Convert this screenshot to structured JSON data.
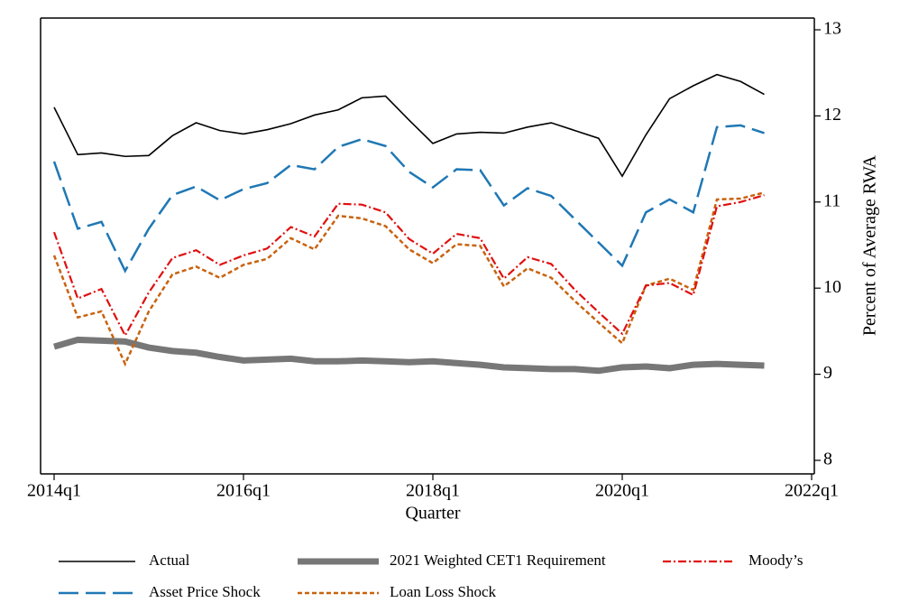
{
  "chart_data": {
    "type": "line",
    "xlabel": "Quarter",
    "ylabel": "Percent of Average RWA",
    "y_axis_side": "right",
    "x": [
      "2014q1",
      "2014q2",
      "2014q3",
      "2014q4",
      "2015q1",
      "2015q2",
      "2015q3",
      "2015q4",
      "2016q1",
      "2016q2",
      "2016q3",
      "2016q4",
      "2017q1",
      "2017q2",
      "2017q3",
      "2017q4",
      "2018q1",
      "2018q2",
      "2018q3",
      "2018q4",
      "2019q1",
      "2019q2",
      "2019q3",
      "2019q4",
      "2020q1",
      "2020q2",
      "2020q3",
      "2020q4",
      "2021q1",
      "2021q2",
      "2021q3"
    ],
    "xlim": [
      "2014q1",
      "2022q1"
    ],
    "xticks": [
      "2014q1",
      "2016q1",
      "2018q1",
      "2020q1",
      "2022q1"
    ],
    "ylim": [
      8,
      13
    ],
    "yticks": [
      8,
      9,
      10,
      11,
      12,
      13
    ],
    "grid": false,
    "series": [
      {
        "name": "Actual",
        "color": "#000000",
        "style": "solid",
        "values": [
          12.1,
          11.55,
          11.57,
          11.53,
          11.54,
          11.77,
          11.92,
          11.83,
          11.79,
          11.84,
          11.91,
          12.01,
          12.07,
          12.21,
          12.23,
          11.95,
          11.68,
          11.79,
          11.81,
          11.8,
          11.87,
          11.92,
          11.83,
          11.74,
          11.3,
          11.78,
          12.2,
          12.35,
          12.48,
          12.4,
          12.25
        ]
      },
      {
        "name": "2021 Weighted CET1 Requirement",
        "color": "#777777",
        "style": "thick",
        "values": [
          9.32,
          9.4,
          9.39,
          9.38,
          9.31,
          9.27,
          9.25,
          9.2,
          9.16,
          9.17,
          9.18,
          9.15,
          9.15,
          9.16,
          9.15,
          9.14,
          9.15,
          9.13,
          9.11,
          9.08,
          9.07,
          9.06,
          9.06,
          9.04,
          9.08,
          9.09,
          9.07,
          9.11,
          9.12,
          9.11,
          9.1
        ]
      },
      {
        "name": "Moody’s",
        "color": "#e0100f",
        "style": "dash-dot",
        "values": [
          10.65,
          9.88,
          9.99,
          9.45,
          9.95,
          10.35,
          10.44,
          10.27,
          10.38,
          10.46,
          10.71,
          10.6,
          10.98,
          10.97,
          10.88,
          10.57,
          10.4,
          10.63,
          10.58,
          10.11,
          10.36,
          10.28,
          9.98,
          9.72,
          9.47,
          10.03,
          10.06,
          9.92,
          10.95,
          11.0,
          11.08
        ]
      },
      {
        "name": "Asset Price Shock",
        "color": "#1f78b4",
        "style": "long-dash",
        "values": [
          11.47,
          10.69,
          10.77,
          10.2,
          10.69,
          11.08,
          11.18,
          11.02,
          11.15,
          11.22,
          11.43,
          11.38,
          11.64,
          11.73,
          11.65,
          11.35,
          11.17,
          11.38,
          11.37,
          10.96,
          11.16,
          11.07,
          10.8,
          10.53,
          10.26,
          10.88,
          11.03,
          10.88,
          11.87,
          11.89,
          11.8
        ]
      },
      {
        "name": "Loan Loss Shock",
        "color": "#c8630f",
        "style": "short-dash",
        "values": [
          10.38,
          9.66,
          9.73,
          9.12,
          9.73,
          10.16,
          10.25,
          10.12,
          10.27,
          10.34,
          10.58,
          10.45,
          10.84,
          10.81,
          10.72,
          10.45,
          10.29,
          10.51,
          10.49,
          10.02,
          10.23,
          10.12,
          9.85,
          9.6,
          9.36,
          10.03,
          10.11,
          9.98,
          11.03,
          11.04,
          11.11
        ]
      }
    ]
  }
}
